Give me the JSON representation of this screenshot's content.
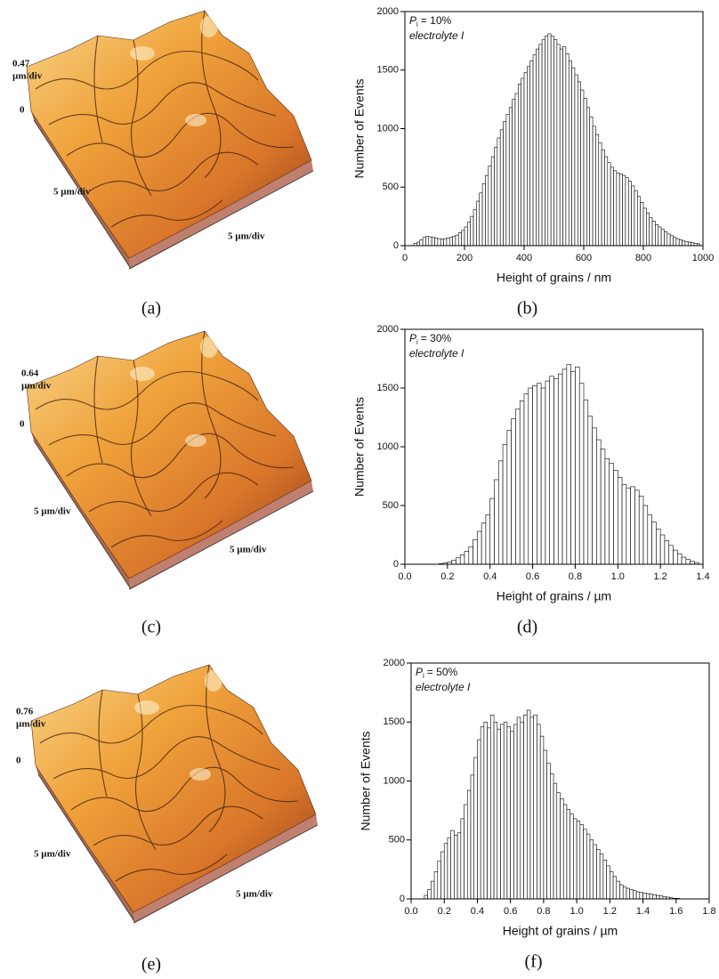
{
  "afm_panels": [
    {
      "z_scale": "0.47",
      "z_unit": "µm/div",
      "z_zero": "0",
      "x_label": "5 µm/div",
      "y_label": "5 µm/div",
      "panel": "(a)"
    },
    {
      "z_scale": "0.64",
      "z_unit": "µm/div",
      "z_zero": "0",
      "x_label": "5 µm/div",
      "y_label": "5 µm/div",
      "panel": "(c)"
    },
    {
      "z_scale": "0.76",
      "z_unit": "µm/div",
      "z_zero": "0",
      "x_label": "5 µm/div",
      "y_label": "5 µm/div",
      "panel": "(e)"
    }
  ],
  "chart_data": [
    {
      "type": "histogram",
      "panel": "(b)",
      "symbol": "P",
      "subscript": "i",
      "condition": "= 10%",
      "note": "electrolyte I",
      "x_label": "Height of grains / nm",
      "y_label": "Number of Events",
      "color": "#ffffff",
      "bins": [
        30,
        40,
        50,
        60,
        70,
        80,
        90,
        100,
        110,
        120,
        130,
        140,
        150,
        160,
        170,
        180,
        190,
        200,
        210,
        220,
        230,
        240,
        250,
        260,
        270,
        280,
        290,
        300,
        310,
        320,
        330,
        340,
        350,
        360,
        370,
        380,
        390,
        400,
        410,
        420,
        430,
        440,
        450,
        460,
        470,
        480,
        490,
        500,
        510,
        520,
        530,
        540,
        550,
        560,
        570,
        580,
        590,
        600,
        610,
        620,
        630,
        640,
        650,
        660,
        670,
        680,
        690,
        700,
        710,
        720,
        730,
        740,
        750,
        760,
        770,
        780,
        790,
        800,
        810,
        820,
        830,
        840,
        850,
        860,
        870,
        880,
        890,
        900,
        910,
        920,
        930,
        940,
        950,
        960,
        970,
        980,
        990
      ],
      "values": [
        20,
        30,
        50,
        70,
        80,
        75,
        70,
        65,
        60,
        55,
        60,
        65,
        70,
        80,
        90,
        110,
        130,
        160,
        200,
        250,
        310,
        380,
        450,
        530,
        600,
        680,
        760,
        840,
        920,
        990,
        1060,
        1120,
        1180,
        1250,
        1300,
        1380,
        1430,
        1480,
        1530,
        1580,
        1630,
        1680,
        1720,
        1760,
        1790,
        1810,
        1790,
        1760,
        1720,
        1680,
        1700,
        1640,
        1580,
        1520,
        1460,
        1400,
        1330,
        1260,
        1180,
        1100,
        1020,
        950,
        880,
        820,
        760,
        710,
        670,
        640,
        620,
        610,
        600,
        580,
        550,
        510,
        470,
        420,
        370,
        320,
        280,
        240,
        210,
        180,
        160,
        140,
        120,
        100,
        85,
        70,
        60,
        50,
        40,
        35,
        30,
        25,
        20,
        15
      ],
      "xlim": [
        0,
        1000
      ],
      "xticks": [
        0,
        200,
        400,
        600,
        800,
        1000
      ],
      "ylim": [
        0,
        2000
      ],
      "yticks": [
        0,
        500,
        1000,
        1500,
        2000
      ]
    },
    {
      "type": "histogram",
      "panel": "(d)",
      "symbol": "P",
      "subscript": "i",
      "condition": "= 30%",
      "note": "electrolyte I",
      "x_label": "Height of grains / µm",
      "y_label": "Number of Events",
      "color": "#ffffff",
      "bins": [
        0.16,
        0.18,
        0.2,
        0.22,
        0.24,
        0.26,
        0.28,
        0.3,
        0.32,
        0.34,
        0.36,
        0.38,
        0.4,
        0.42,
        0.44,
        0.46,
        0.48,
        0.5,
        0.52,
        0.54,
        0.56,
        0.58,
        0.6,
        0.62,
        0.64,
        0.66,
        0.68,
        0.7,
        0.72,
        0.74,
        0.76,
        0.78,
        0.8,
        0.82,
        0.84,
        0.86,
        0.88,
        0.9,
        0.92,
        0.94,
        0.96,
        0.98,
        1.0,
        1.02,
        1.04,
        1.06,
        1.08,
        1.1,
        1.12,
        1.14,
        1.16,
        1.18,
        1.2,
        1.22,
        1.24,
        1.26,
        1.28,
        1.3,
        1.32,
        1.34,
        1.36,
        1.38
      ],
      "values": [
        5,
        10,
        20,
        35,
        55,
        80,
        110,
        150,
        210,
        280,
        350,
        420,
        560,
        720,
        880,
        1020,
        1140,
        1240,
        1320,
        1390,
        1450,
        1500,
        1520,
        1540,
        1500,
        1560,
        1600,
        1580,
        1620,
        1660,
        1700,
        1640,
        1680,
        1540,
        1400,
        1260,
        1160,
        1060,
        980,
        900,
        860,
        800,
        740,
        680,
        650,
        660,
        630,
        580,
        500,
        420,
        360,
        300,
        250,
        200,
        160,
        120,
        90,
        60,
        40,
        25,
        15
      ],
      "xlim": [
        0,
        1.4
      ],
      "xticks": [
        {
          "value": 0,
          "label": "0.0"
        },
        0.2,
        0.4,
        0.6,
        0.8,
        {
          "value": 1,
          "label": "1.0"
        },
        1.2,
        1.4
      ],
      "ylim": [
        0,
        2000
      ],
      "yticks": [
        0,
        500,
        1000,
        1500,
        2000
      ]
    },
    {
      "type": "histogram",
      "panel": "(f)",
      "symbol": "P",
      "subscript": "i",
      "condition": "= 50%",
      "note": "electrolyte I",
      "x_label": "Height of grains / µm",
      "y_label": "Number of Events",
      "color": "#ffffff",
      "bins": [
        0.08,
        0.1,
        0.12,
        0.14,
        0.16,
        0.18,
        0.2,
        0.22,
        0.24,
        0.26,
        0.28,
        0.3,
        0.32,
        0.34,
        0.36,
        0.38,
        0.4,
        0.42,
        0.44,
        0.46,
        0.48,
        0.5,
        0.52,
        0.54,
        0.56,
        0.58,
        0.6,
        0.62,
        0.64,
        0.66,
        0.68,
        0.7,
        0.72,
        0.74,
        0.76,
        0.78,
        0.8,
        0.82,
        0.84,
        0.86,
        0.88,
        0.9,
        0.92,
        0.94,
        0.96,
        0.98,
        1.0,
        1.02,
        1.04,
        1.06,
        1.08,
        1.1,
        1.12,
        1.14,
        1.16,
        1.18,
        1.2,
        1.22,
        1.24,
        1.26,
        1.28,
        1.3,
        1.32,
        1.34,
        1.36,
        1.38,
        1.4,
        1.42,
        1.44,
        1.46,
        1.48,
        1.5,
        1.52,
        1.54,
        1.56,
        1.58,
        1.6,
        1.62
      ],
      "values": [
        30,
        80,
        150,
        230,
        320,
        400,
        470,
        520,
        580,
        540,
        560,
        680,
        800,
        920,
        1050,
        1200,
        1350,
        1460,
        1500,
        1450,
        1560,
        1500,
        1440,
        1480,
        1500,
        1460,
        1420,
        1480,
        1540,
        1500,
        1560,
        1600,
        1540,
        1560,
        1480,
        1380,
        1260,
        1150,
        1060,
        980,
        900,
        850,
        800,
        760,
        720,
        680,
        660,
        630,
        590,
        550,
        500,
        460,
        420,
        380,
        330,
        280,
        230,
        190,
        150,
        120,
        100,
        90,
        80,
        70,
        60,
        55,
        50,
        45,
        40,
        35,
        30,
        25,
        20,
        15,
        10,
        5,
        5
      ],
      "xlim": [
        0,
        1.8
      ],
      "xticks": [
        {
          "value": 0,
          "label": "0.0"
        },
        0.2,
        0.4,
        0.6,
        0.8,
        {
          "value": 1,
          "label": "1.0"
        },
        1.2,
        1.4,
        1.6,
        1.8
      ],
      "ylim": [
        0,
        2000
      ],
      "yticks": [
        0,
        500,
        1000,
        1500,
        2000
      ]
    }
  ]
}
